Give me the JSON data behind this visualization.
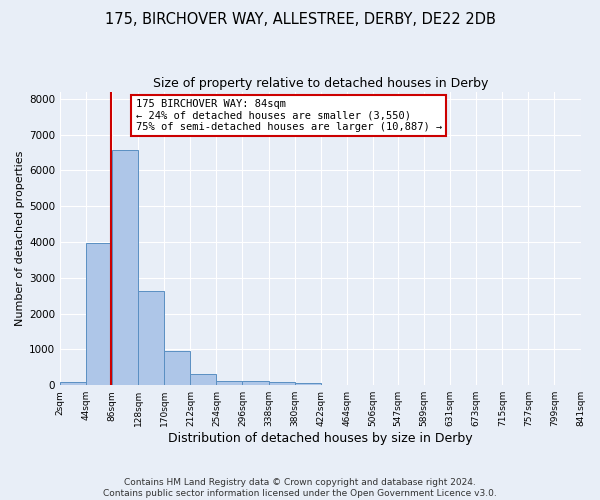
{
  "title1": "175, BIRCHOVER WAY, ALLESTREE, DERBY, DE22 2DB",
  "title2": "Size of property relative to detached houses in Derby",
  "xlabel": "Distribution of detached houses by size in Derby",
  "ylabel": "Number of detached properties",
  "footnote1": "Contains HM Land Registry data © Crown copyright and database right 2024.",
  "footnote2": "Contains public sector information licensed under the Open Government Licence v3.0.",
  "bar_edges": [
    2,
    44,
    86,
    128,
    170,
    212,
    254,
    296,
    338,
    380,
    422,
    464,
    506,
    547,
    589,
    631,
    673,
    715,
    757,
    799,
    841
  ],
  "bar_heights": [
    85,
    3980,
    6580,
    2620,
    960,
    310,
    120,
    115,
    90,
    75,
    0,
    0,
    0,
    0,
    0,
    0,
    0,
    0,
    0,
    0
  ],
  "bar_color": "#aec6e8",
  "bar_edge_color": "#5a8fc2",
  "property_size": 84,
  "annotation_line1": "175 BIRCHOVER WAY: 84sqm",
  "annotation_line2": "← 24% of detached houses are smaller (3,550)",
  "annotation_line3": "75% of semi-detached houses are larger (10,887) →",
  "annotation_box_color": "#ffffff",
  "annotation_box_edge_color": "#cc0000",
  "vline_color": "#cc0000",
  "background_color": "#e8eef7",
  "grid_color": "#ffffff",
  "ylim": [
    0,
    8200
  ],
  "yticks": [
    0,
    1000,
    2000,
    3000,
    4000,
    5000,
    6000,
    7000,
    8000
  ],
  "tick_labels": [
    "2sqm",
    "44sqm",
    "86sqm",
    "128sqm",
    "170sqm",
    "212sqm",
    "254sqm",
    "296sqm",
    "338sqm",
    "380sqm",
    "422sqm",
    "464sqm",
    "506sqm",
    "547sqm",
    "589sqm",
    "631sqm",
    "673sqm",
    "715sqm",
    "757sqm",
    "799sqm",
    "841sqm"
  ],
  "title1_fontsize": 10.5,
  "title2_fontsize": 9,
  "xlabel_fontsize": 9,
  "ylabel_fontsize": 8,
  "footnote_fontsize": 6.5,
  "annot_fontsize": 7.5
}
